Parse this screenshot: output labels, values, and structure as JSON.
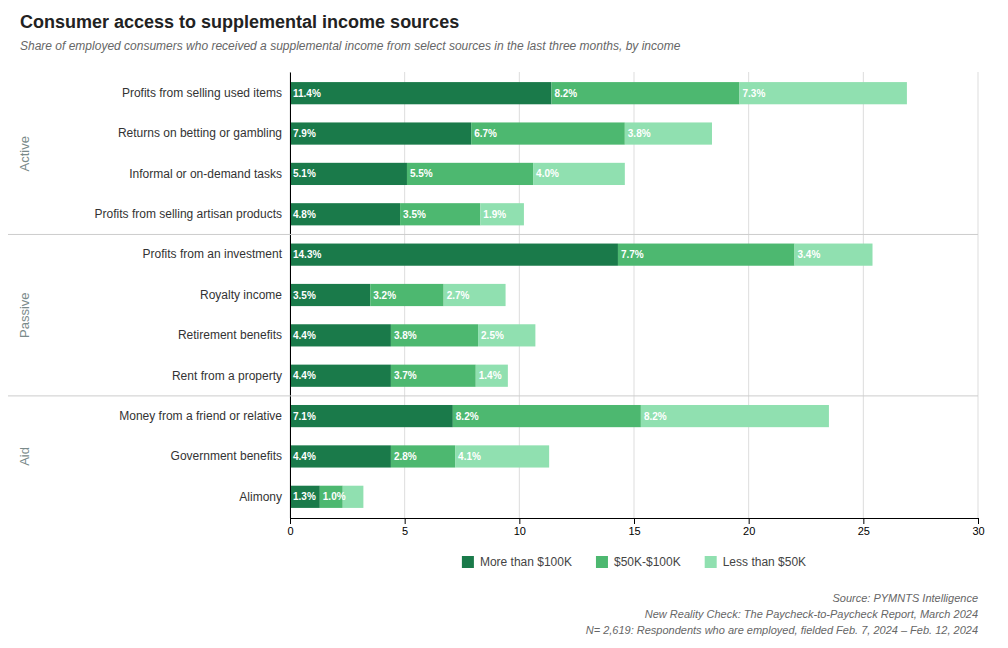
{
  "chart_data": {
    "type": "bar",
    "orientation": "horizontal",
    "stacked": true,
    "title": "Consumer access to supplemental income sources",
    "subtitle": "Share of employed consumers who received a supplemental income from select sources in the last three months, by income",
    "categories": [
      "Profits from selling used items",
      "Returns on betting or gambling",
      "Informal or on-demand tasks",
      "Profits from selling artisan products",
      "Profits from an investment",
      "Royalty income",
      "Retirement benefits",
      "Rent from a property",
      "Money from a friend or relative",
      "Government benefits",
      "Alimony"
    ],
    "groups": [
      {
        "name": "Active",
        "start": 0,
        "end": 3
      },
      {
        "name": "Passive",
        "start": 4,
        "end": 7
      },
      {
        "name": "Aid",
        "start": 8,
        "end": 10
      }
    ],
    "series": [
      {
        "name": "More than $100K",
        "color": "#1a7a4a",
        "values": [
          11.4,
          7.9,
          5.1,
          4.8,
          14.3,
          3.5,
          4.4,
          4.4,
          7.1,
          4.4,
          1.3
        ],
        "value_labels": [
          "11.4%",
          "7.9%",
          "5.1%",
          "4.8%",
          "14.3%",
          "3.5%",
          "4.4%",
          "4.4%",
          "7.1%",
          "4.4%",
          "1.3%"
        ]
      },
      {
        "name": "$50K-$100K",
        "color": "#4db870",
        "values": [
          8.2,
          6.7,
          5.5,
          3.5,
          7.7,
          3.2,
          3.8,
          3.7,
          8.2,
          2.8,
          1.0
        ],
        "value_labels": [
          "8.2%",
          "6.7%",
          "5.5%",
          "3.5%",
          "7.7%",
          "3.2%",
          "3.8%",
          "3.7%",
          "8.2%",
          "2.8%",
          "1.0%"
        ]
      },
      {
        "name": "Less than $50K",
        "color": "#90e0b0",
        "values": [
          7.3,
          3.8,
          4.0,
          1.9,
          3.4,
          2.7,
          2.5,
          1.4,
          8.2,
          4.1,
          0.9
        ],
        "value_labels": [
          "7.3%",
          "3.8%",
          "4.0%",
          "1.9%",
          "3.4%",
          "2.7%",
          "2.5%",
          "1.4%",
          "8.2%",
          "4.1%",
          null
        ]
      }
    ],
    "xlim": [
      0,
      30
    ],
    "xticks": [
      0,
      5,
      10,
      15,
      20,
      25,
      30
    ],
    "grid": true,
    "legend": "bottom",
    "data_labels": true,
    "annotations": [
      "Source: PYMNTS Intelligence",
      "New Reality Check: The Paycheck-to-Paycheck Report, March 2024",
      "N= 2,619: Respondents who are employed, fielded Feb. 7, 2024 – Feb. 12, 2024"
    ]
  }
}
